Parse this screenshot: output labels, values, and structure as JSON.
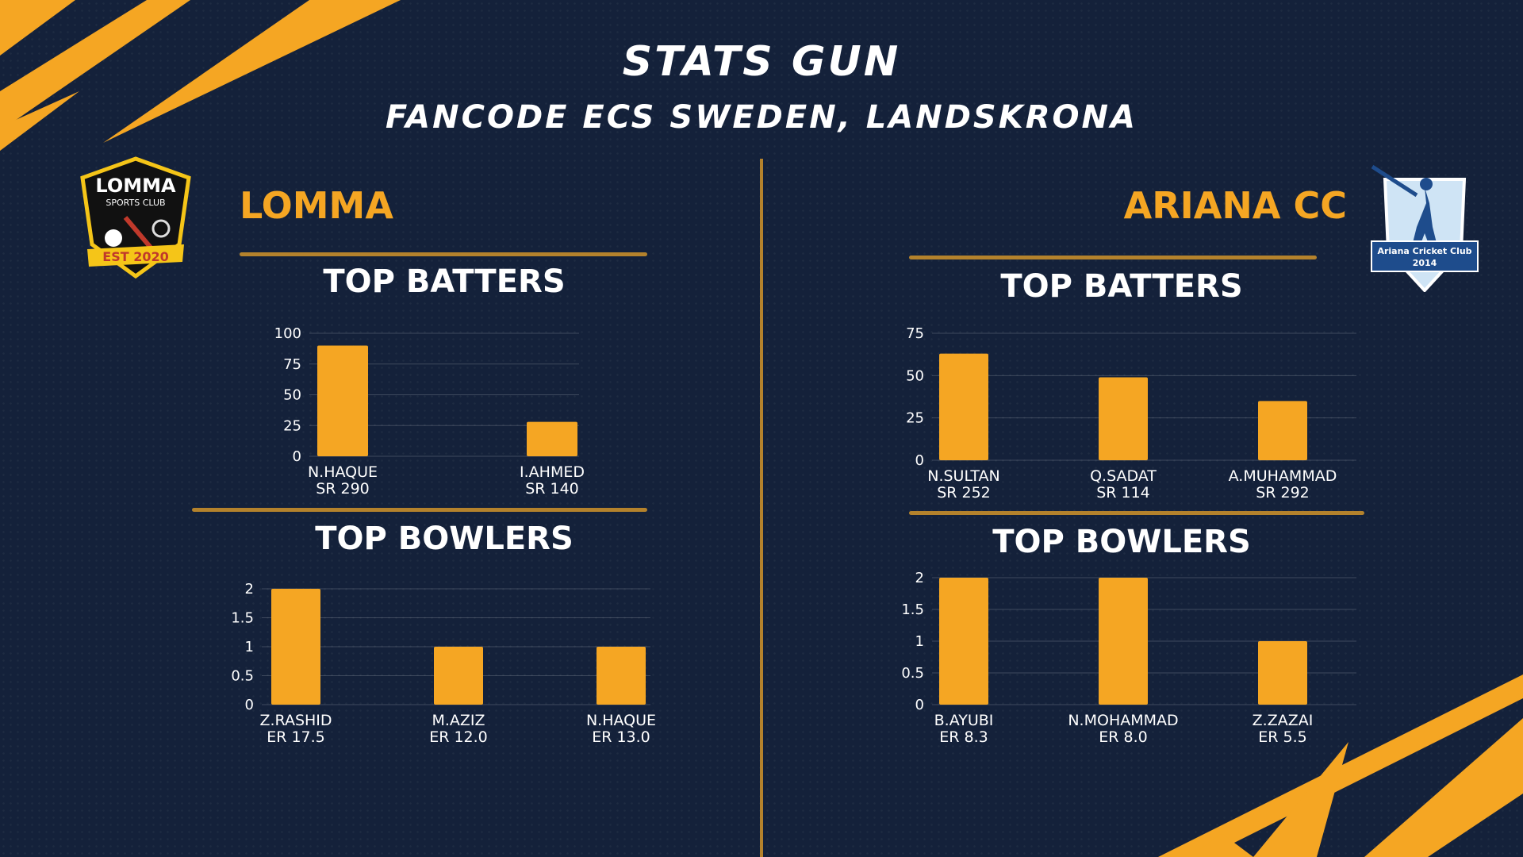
{
  "header": {
    "title": "STATS GUN",
    "subtitle": "FANCODE ECS SWEDEN, LANDSKRONA"
  },
  "colors": {
    "accent": "#f5a623",
    "background": "#14213a",
    "rule": "#b4822c"
  },
  "teams": [
    {
      "name": "LOMMA",
      "logo": {
        "line1": "LOMMA",
        "line2": "SPORTS CLUB",
        "ribbon": "EST 2020"
      },
      "batters_title": "TOP BATTERS",
      "bowlers_title": "TOP BOWLERS"
    },
    {
      "name": "ARIANA CC",
      "logo": {
        "ribbon": "Ariana Cricket Club",
        "year": "2014"
      },
      "batters_title": "TOP BATTERS",
      "bowlers_title": "TOP BOWLERS"
    }
  ],
  "chart_data": [
    {
      "id": "lomma-batters",
      "type": "bar",
      "title": "TOP BATTERS",
      "categories": [
        "N.HAQUE",
        "I.AHMED"
      ],
      "sublabels": [
        "SR 290",
        "SR 140"
      ],
      "values": [
        90,
        28
      ],
      "ylim": [
        0,
        100
      ],
      "yticks": [
        "0",
        "25",
        "50",
        "75",
        "100"
      ],
      "grid": true,
      "color": "#f5a623"
    },
    {
      "id": "lomma-bowlers",
      "type": "bar",
      "title": "TOP BOWLERS",
      "categories": [
        "Z.RASHID",
        "M.AZIZ",
        "N.HAQUE"
      ],
      "sublabels": [
        "ER 17.5",
        "ER 12.0",
        "ER 13.0"
      ],
      "values": [
        2,
        1,
        1
      ],
      "ylim": [
        0,
        2
      ],
      "yticks": [
        "0",
        "0.5",
        "1",
        "1.5",
        "2"
      ],
      "grid": true,
      "color": "#f5a623"
    },
    {
      "id": "ariana-batters",
      "type": "bar",
      "title": "TOP BATTERS",
      "categories": [
        "N.SULTAN",
        "Q.SADAT",
        "A.MUHAMMAD"
      ],
      "sublabels": [
        "SR 252",
        "SR 114",
        "SR 292"
      ],
      "values": [
        63,
        49,
        35
      ],
      "ylim": [
        0,
        75
      ],
      "yticks": [
        "0",
        "25",
        "50",
        "75"
      ],
      "grid": true,
      "color": "#f5a623"
    },
    {
      "id": "ariana-bowlers",
      "type": "bar",
      "title": "TOP BOWLERS",
      "categories": [
        "B.AYUBI",
        "N.MOHAMMAD",
        "Z.ZAZAI"
      ],
      "sublabels": [
        "ER 8.3",
        "ER 8.0",
        "ER 5.5"
      ],
      "values": [
        2,
        2,
        1
      ],
      "ylim": [
        0,
        2
      ],
      "yticks": [
        "0",
        "0.5",
        "1",
        "1.5",
        "2"
      ],
      "grid": true,
      "color": "#f5a623"
    }
  ]
}
